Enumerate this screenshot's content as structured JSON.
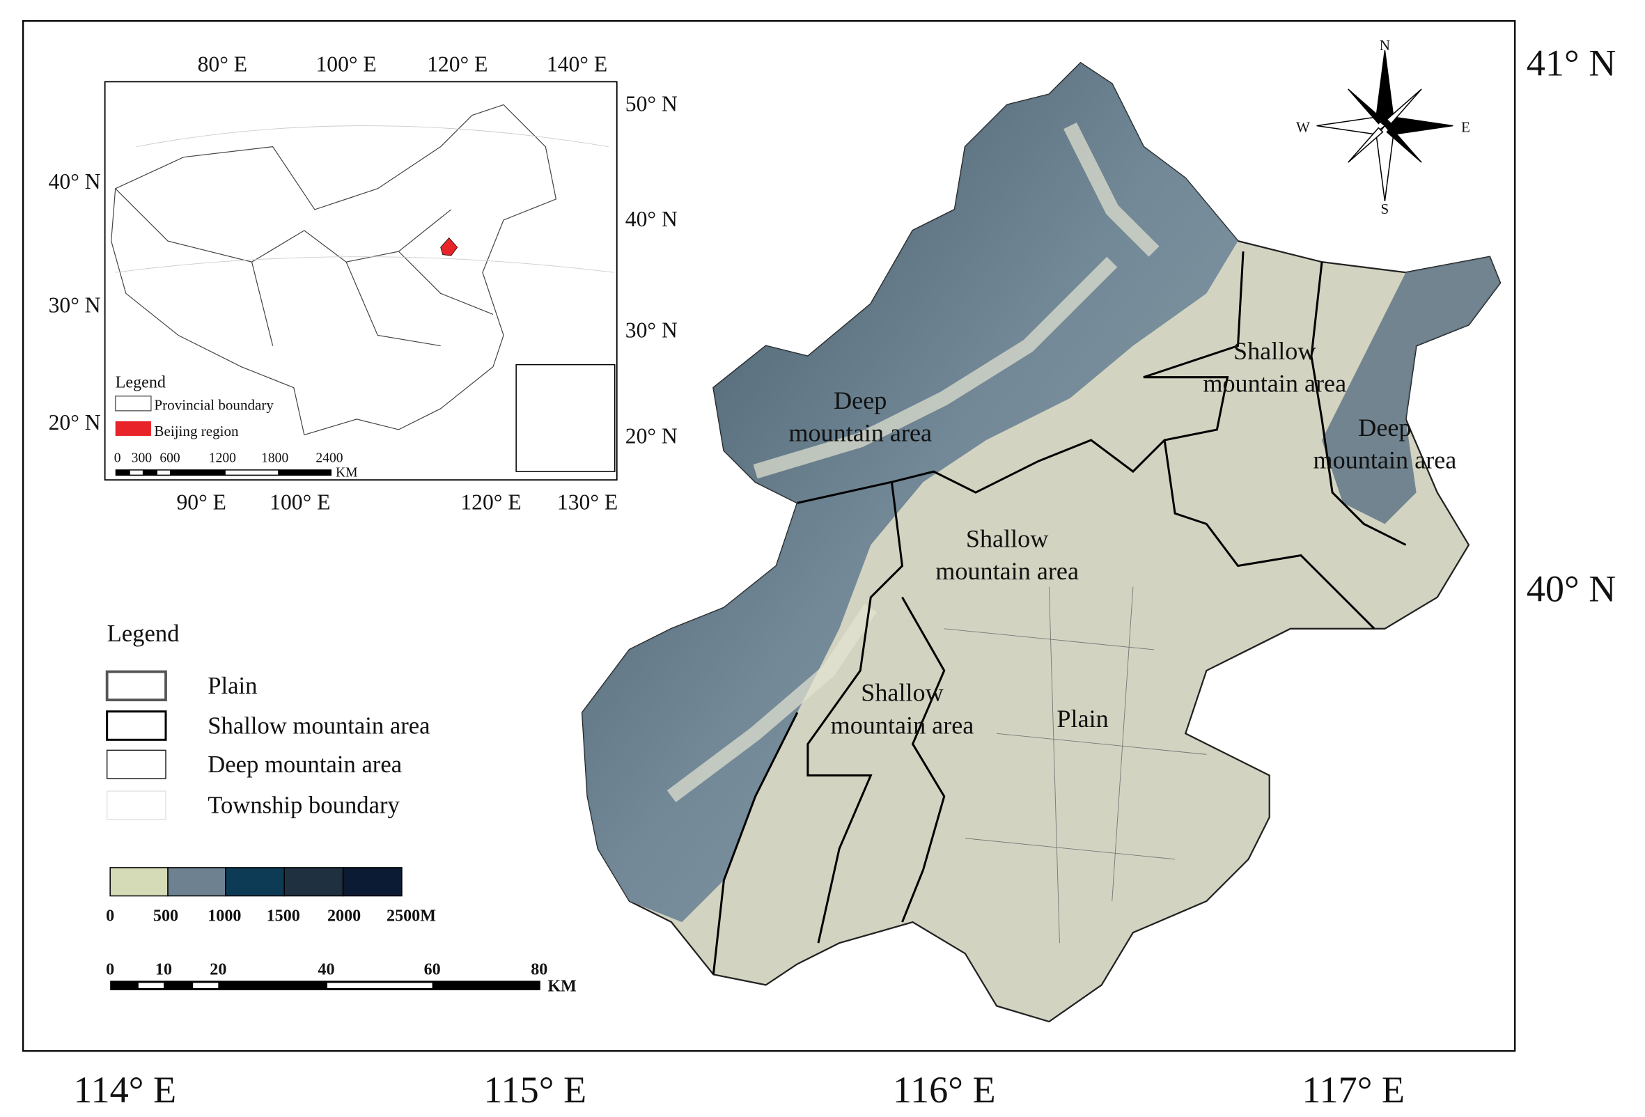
{
  "main_map": {
    "x_labels": [
      "114° E",
      "115° E",
      "116° E",
      "117° E"
    ],
    "y_labels": [
      "41° N",
      "40° N"
    ],
    "region_labels": [
      {
        "lines": [
          "Deep",
          "mountain area"
        ]
      },
      {
        "lines": [
          "Shallow",
          "mountain area"
        ]
      },
      {
        "lines": [
          "Deep",
          "mountain area"
        ]
      },
      {
        "lines": [
          "Shallow",
          "mountain area"
        ]
      },
      {
        "lines": [
          "Shallow",
          "mountain area"
        ]
      },
      {
        "lines": [
          "Plain"
        ]
      }
    ],
    "compass": [
      "N",
      "S",
      "W",
      "E"
    ]
  },
  "inset": {
    "top_labels": [
      "80° E",
      "100° E",
      "120° E",
      "140° E"
    ],
    "right_labels": [
      "50° N",
      "40° N",
      "30° N",
      "20° N"
    ],
    "left_labels": [
      "40° N",
      "30° N",
      "20° N"
    ],
    "bottom_labels": [
      "90° E",
      "100° E",
      "120° E",
      "130° E"
    ],
    "legend_title": "Legend",
    "legend_items": [
      "Provincial boundary",
      "Beijing region"
    ],
    "scale_labels": [
      "0",
      "300",
      "600",
      "1200",
      "1800",
      "2400"
    ],
    "scale_unit": "KM"
  },
  "legend": {
    "title": "Legend",
    "items": [
      "Plain",
      "Shallow mountain area",
      "Deep mountain area",
      "Township boundary"
    ]
  },
  "elevation_scale": {
    "labels": [
      "0",
      "500",
      "1000",
      "1500",
      "2000",
      "2500M"
    ]
  },
  "scale_bar": {
    "labels": [
      "0",
      "10",
      "20",
      "40",
      "60",
      "80"
    ],
    "unit": "KM"
  }
}
